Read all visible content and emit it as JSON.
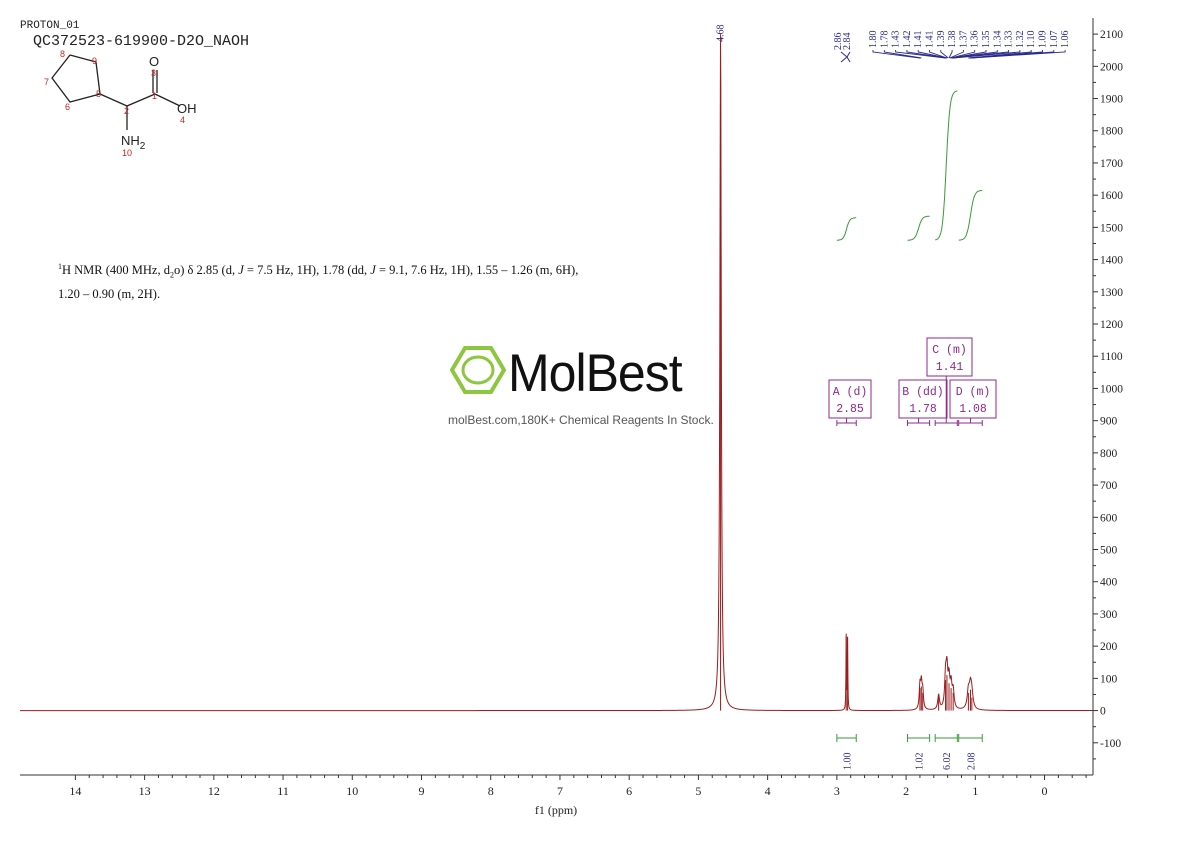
{
  "header": {
    "experiment": "PROTON_01",
    "sample_id": "QC372523-619900-D2O_NAOH"
  },
  "nmr_description": {
    "line1_parts": [
      "1",
      "H NMR (400 MHz, d",
      "2",
      "o) δ 2.85 (d, ",
      "J",
      " = 7.5 Hz, 1H), 1.78 (dd, ",
      "J",
      " = 9.1, 7.6 Hz, 1H), 1.55 – 1.26 (m, 6H),"
    ],
    "line2": "1.20 – 0.90 (m, 2H)."
  },
  "watermark": {
    "logo": "MolBest",
    "tagline": "molBest.com,180K+ Chemical Reagents In Stock.",
    "color": "#8dc63f"
  },
  "molecule": {
    "atom_numbers": [
      "1",
      "2",
      "3",
      "4",
      "5",
      "6",
      "7",
      "8",
      "9",
      "10"
    ],
    "labels": {
      "oxygen": "O",
      "hydroxyl": "OH",
      "amine": "NH",
      "amine_sub": "2"
    }
  },
  "chart_data": {
    "type": "line",
    "xlabel": "f1 (ppm)",
    "xlim": [
      14.8,
      -0.7
    ],
    "x_ticks": [
      14,
      13,
      12,
      11,
      10,
      9,
      8,
      7,
      6,
      5,
      4,
      3,
      2,
      1,
      0
    ],
    "ylim": [
      -200,
      2150
    ],
    "y_ticks": [
      2100,
      2000,
      1900,
      1800,
      1700,
      1600,
      1500,
      1400,
      1300,
      1200,
      1100,
      1000,
      900,
      800,
      700,
      600,
      500,
      400,
      300,
      200,
      100,
      0,
      -100
    ],
    "peaks": [
      {
        "ppm": 4.68,
        "height": 2100,
        "width": 0.012
      },
      {
        "ppm": 2.865,
        "height": 230,
        "width": 0.004
      },
      {
        "ppm": 2.845,
        "height": 225,
        "width": 0.004
      },
      {
        "ppm": 1.8,
        "height": 70,
        "width": 0.012
      },
      {
        "ppm": 1.78,
        "height": 75,
        "width": 0.012
      },
      {
        "ppm": 1.76,
        "height": 55,
        "width": 0.012
      },
      {
        "ppm": 1.53,
        "height": 45,
        "width": 0.015
      },
      {
        "ppm": 1.43,
        "height": 95,
        "width": 0.015
      },
      {
        "ppm": 1.41,
        "height": 110,
        "width": 0.015
      },
      {
        "ppm": 1.38,
        "height": 85,
        "width": 0.015
      },
      {
        "ppm": 1.35,
        "height": 70,
        "width": 0.015
      },
      {
        "ppm": 1.32,
        "height": 55,
        "width": 0.015
      },
      {
        "ppm": 1.1,
        "height": 55,
        "width": 0.02
      },
      {
        "ppm": 1.07,
        "height": 65,
        "width": 0.02
      },
      {
        "ppm": 1.05,
        "height": 40,
        "width": 0.02
      }
    ],
    "solvent_peak_label": "4.68",
    "peak_labels_left": [
      "2.86",
      "2.84"
    ],
    "peak_labels_right": [
      "1.80",
      "1.78",
      "1.43",
      "1.42",
      "1.41",
      "1.41",
      "1.39",
      "1.38",
      "1.37",
      "1.36",
      "1.35",
      "1.34",
      "1.33",
      "1.32",
      "1.10",
      "1.09",
      "1.07",
      "1.06"
    ],
    "multiplets": [
      {
        "letter": "A",
        "mult": "(d)",
        "shift": "2.85",
        "from": 3.0,
        "to": 2.72
      },
      {
        "letter": "B",
        "mult": "(dd)",
        "shift": "1.78",
        "from": 1.98,
        "to": 1.66
      },
      {
        "letter": "C",
        "mult": "(m)",
        "shift": "1.41",
        "from": 1.58,
        "to": 1.26
      },
      {
        "letter": "D",
        "mult": "(m)",
        "shift": "1.08",
        "from": 1.24,
        "to": 0.9
      }
    ],
    "integrals": [
      {
        "value": "1.00",
        "from": 3.0,
        "to": 2.72,
        "y0": 1460,
        "y1": 1530
      },
      {
        "value": "1.02",
        "from": 1.98,
        "to": 1.66,
        "y0": 1460,
        "y1": 1535
      },
      {
        "value": "6.02",
        "from": 1.58,
        "to": 1.26,
        "y0": 1460,
        "y1": 1925
      },
      {
        "value": "2.08",
        "from": 1.24,
        "to": 0.9,
        "y0": 1460,
        "y1": 1615
      }
    ]
  }
}
